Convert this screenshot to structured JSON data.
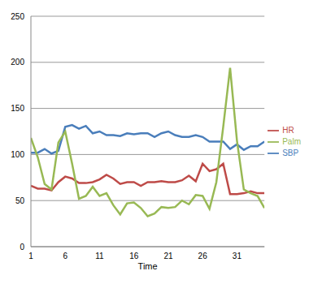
{
  "chart_data": {
    "type": "line",
    "x_label": "Time",
    "x": [
      1,
      2,
      3,
      4,
      5,
      6,
      7,
      8,
      9,
      10,
      11,
      12,
      13,
      14,
      15,
      16,
      17,
      18,
      19,
      20,
      21,
      22,
      23,
      24,
      25,
      26,
      27,
      28,
      29,
      30,
      31,
      32,
      33,
      34,
      35
    ],
    "xlim": [
      1,
      35
    ],
    "xticks": [
      1,
      6,
      11,
      16,
      21,
      26,
      31
    ],
    "ylim": [
      0,
      250
    ],
    "yticks": [
      0,
      50,
      100,
      150,
      200,
      250
    ],
    "grid": true,
    "legend": "right",
    "marker": "none",
    "line_style": "solid",
    "series": [
      {
        "name": "SBP",
        "color": "#4a7ebb",
        "values": [
          102,
          102,
          106,
          101,
          104,
          130,
          132,
          128,
          131,
          123,
          125,
          121,
          121,
          120,
          123,
          122,
          123,
          123,
          119,
          123,
          125,
          121,
          119,
          119,
          121,
          119,
          114,
          114,
          114,
          106,
          111,
          105,
          109,
          109,
          114
        ]
      },
      {
        "name": "HR",
        "color": "#be4b48",
        "values": [
          66,
          63,
          63,
          61,
          70,
          76,
          74,
          69,
          69,
          70,
          73,
          78,
          74,
          68,
          70,
          70,
          66,
          70,
          70,
          71,
          70,
          70,
          72,
          77,
          71,
          90,
          82,
          84,
          90,
          57,
          57,
          58,
          60,
          58,
          58
        ]
      },
      {
        "name": "Palm",
        "color": "#98b954",
        "values": [
          118,
          97,
          68,
          62,
          113,
          125,
          90,
          52,
          55,
          65,
          55,
          58,
          45,
          35,
          47,
          48,
          42,
          33,
          36,
          43,
          42,
          43,
          50,
          46,
          56,
          55,
          41,
          70,
          130,
          194,
          115,
          62,
          58,
          55,
          42
        ]
      }
    ]
  }
}
